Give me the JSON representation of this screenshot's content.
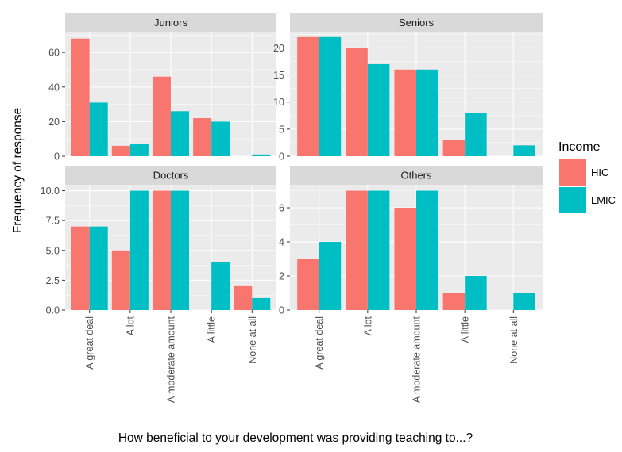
{
  "chart_data": {
    "type": "bar",
    "layout": "facet-grid-2x2",
    "xlabel": "How beneficial to your development was providing teaching to...?",
    "ylabel": "Frequency of response",
    "categories": [
      "A great deal",
      "A lot",
      "A moderate amount",
      "A little",
      "None at all"
    ],
    "legend": {
      "title": "Income",
      "placement": "right",
      "entries": [
        "HIC",
        "LMIC"
      ]
    },
    "colors": {
      "HIC": "#F8766D",
      "LMIC": "#00BFC4",
      "panel_bg": "#EBEBEB",
      "strip_bg": "#D9D9D9",
      "grid": "#FFFFFF"
    },
    "grid": true,
    "facets": [
      {
        "title": "Juniors",
        "ylim": [
          0,
          72
        ],
        "yticks": [
          0,
          20,
          40,
          60
        ],
        "ytick_labels": [
          "0",
          "20",
          "40",
          "60"
        ],
        "series": [
          {
            "name": "HIC",
            "values": [
              68,
              6,
              46,
              22,
              0
            ]
          },
          {
            "name": "LMIC",
            "values": [
              31,
              7,
              26,
              20,
              1
            ]
          }
        ]
      },
      {
        "title": "Seniors",
        "ylim": [
          0,
          23
        ],
        "yticks": [
          0,
          5,
          10,
          15,
          20
        ],
        "ytick_labels": [
          "0",
          "5",
          "10",
          "15",
          "20"
        ],
        "series": [
          {
            "name": "HIC",
            "values": [
              22,
              20,
              16,
              3,
              0
            ]
          },
          {
            "name": "LMIC",
            "values": [
              22,
              17,
              16,
              8,
              2
            ]
          }
        ]
      },
      {
        "title": "Doctors",
        "ylim": [
          0,
          10.5
        ],
        "yticks": [
          0,
          2.5,
          5,
          7.5,
          10
        ],
        "ytick_labels": [
          "0.0",
          "2.5",
          "5.0",
          "7.5",
          "10.0"
        ],
        "series": [
          {
            "name": "HIC",
            "values": [
              7,
              5,
              10,
              0,
              2
            ]
          },
          {
            "name": "LMIC",
            "values": [
              7,
              10,
              10,
              4,
              1
            ]
          }
        ]
      },
      {
        "title": "Others",
        "ylim": [
          0,
          7.35
        ],
        "yticks": [
          0,
          2,
          4,
          6
        ],
        "ytick_labels": [
          "0",
          "2",
          "4",
          "6"
        ],
        "series": [
          {
            "name": "HIC",
            "values": [
              3,
              7,
              6,
              1,
              0
            ]
          },
          {
            "name": "LMIC",
            "values": [
              4,
              7,
              7,
              2,
              1
            ]
          }
        ]
      }
    ]
  }
}
